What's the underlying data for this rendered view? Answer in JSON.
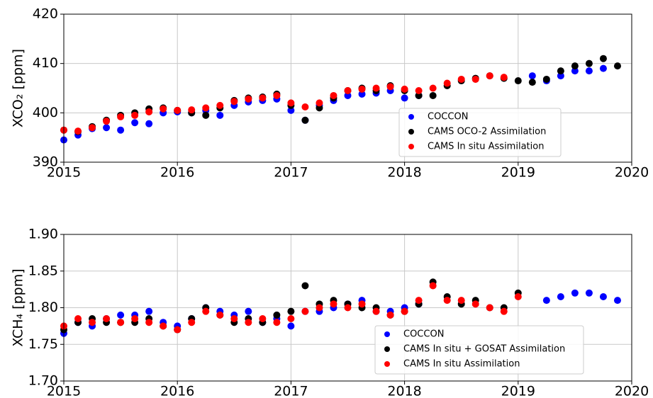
{
  "chart_data": [
    {
      "type": "scatter",
      "y_label": "XCO₂ [ppm]",
      "xlim": [
        2015,
        2020
      ],
      "xticks": [
        2015,
        2016,
        2017,
        2018,
        2019,
        2020
      ],
      "ylim": [
        390,
        420
      ],
      "yticks": [
        390,
        400,
        410,
        420
      ],
      "grid": true,
      "legend": "lower right",
      "x": [
        2015.0,
        2015.125,
        2015.25,
        2015.375,
        2015.5,
        2015.625,
        2015.75,
        2015.875,
        2016.0,
        2016.125,
        2016.25,
        2016.375,
        2016.5,
        2016.625,
        2016.75,
        2016.875,
        2017.0,
        2017.125,
        2017.25,
        2017.375,
        2017.5,
        2017.625,
        2017.75,
        2017.875,
        2018.0,
        2018.125,
        2018.25,
        2018.375,
        2018.5,
        2018.625,
        2018.75,
        2018.875,
        2019.0,
        2019.125,
        2019.25,
        2019.375,
        2019.5,
        2019.625,
        2019.75,
        2019.875
      ],
      "series": [
        {
          "name": "COCCON",
          "color": "#0000ff",
          "values": [
            394.5,
            395.5,
            396.8,
            397,
            396.5,
            398,
            397.8,
            400,
            400.2,
            400,
            400.5,
            399.5,
            401.5,
            402.2,
            402.5,
            402.8,
            400.5,
            398.5,
            401.5,
            402.5,
            403.5,
            403.8,
            404,
            404.5,
            403,
            403.5,
            null,
            null,
            null,
            null,
            null,
            null,
            null,
            407.5,
            406.5,
            407.5,
            408.5,
            408.5,
            409,
            null
          ]
        },
        {
          "name": "CAMS OCO-2 Assimilation",
          "color": "#000000",
          "values": [
            396.5,
            396.2,
            397.2,
            398.5,
            399.5,
            400,
            400.8,
            401,
            400.5,
            400,
            399.5,
            401,
            402.5,
            403,
            403.2,
            403.8,
            401.5,
            398.5,
            401,
            403,
            404.5,
            405,
            404.5,
            405.5,
            404.5,
            403.5,
            403.5,
            405.5,
            406.5,
            407,
            407.5,
            407,
            406.5,
            406.2,
            406.8,
            408.5,
            409.5,
            410,
            411,
            409.5
          ]
        },
        {
          "name": "CAMS In situ Assimilation",
          "color": "#ff0000",
          "values": [
            396.5,
            396.3,
            397,
            398.3,
            399.2,
            399.5,
            400.2,
            400.8,
            400.5,
            400.6,
            401,
            401.5,
            402.3,
            402.8,
            403,
            403.5,
            402,
            401.2,
            402,
            403.5,
            404.5,
            404.8,
            405,
            405.3,
            404.8,
            404.5,
            405,
            406,
            406.8,
            406.8,
            407.5,
            407.2,
            null,
            null,
            null,
            null,
            null,
            null,
            null,
            null
          ]
        }
      ]
    },
    {
      "type": "scatter",
      "y_label": "XCH₄ [ppm]",
      "xlim": [
        2015,
        2020
      ],
      "xticks": [
        2015,
        2016,
        2017,
        2018,
        2019,
        2020
      ],
      "ylim": [
        1.7,
        1.9
      ],
      "yticks": [
        {
          "value": 1.7,
          "label": "1.70"
        },
        1.75,
        {
          "value": 1.8,
          "label": "1.80"
        },
        1.85,
        {
          "value": 1.9,
          "label": "1.90"
        }
      ],
      "grid": true,
      "legend": "lower right",
      "x": [
        2015.0,
        2015.125,
        2015.25,
        2015.375,
        2015.5,
        2015.625,
        2015.75,
        2015.875,
        2016.0,
        2016.125,
        2016.25,
        2016.375,
        2016.5,
        2016.625,
        2016.75,
        2016.875,
        2017.0,
        2017.125,
        2017.25,
        2017.375,
        2017.5,
        2017.625,
        2017.75,
        2017.875,
        2018.0,
        2018.125,
        2018.25,
        2018.375,
        2018.5,
        2018.625,
        2018.75,
        2018.875,
        2019.0,
        2019.125,
        2019.25,
        2019.375,
        2019.5,
        2019.625,
        2019.75,
        2019.875
      ],
      "series": [
        {
          "name": "COCCON",
          "color": "#0000ff",
          "values": [
            1.765,
            1.78,
            1.775,
            1.785,
            1.79,
            1.79,
            1.795,
            1.78,
            1.775,
            1.785,
            1.8,
            1.795,
            1.79,
            1.795,
            1.78,
            1.785,
            1.775,
            1.795,
            1.795,
            1.8,
            1.805,
            1.81,
            1.795,
            1.795,
            1.8,
            1.805,
            null,
            null,
            null,
            null,
            null,
            null,
            null,
            null,
            1.81,
            1.815,
            1.82,
            1.82,
            1.815,
            1.81
          ]
        },
        {
          "name": "CAMS In situ + GOSAT Assimilation",
          "color": "#000000",
          "values": [
            1.77,
            1.78,
            1.785,
            1.78,
            1.78,
            1.78,
            1.785,
            1.775,
            1.77,
            1.785,
            1.8,
            1.79,
            1.78,
            1.785,
            1.78,
            1.79,
            1.795,
            1.83,
            1.805,
            1.81,
            1.805,
            1.8,
            1.8,
            1.79,
            1.795,
            1.805,
            1.835,
            1.815,
            1.805,
            1.81,
            1.8,
            1.8,
            1.82,
            null,
            null,
            null,
            null,
            null,
            null,
            null
          ]
        },
        {
          "name": "CAMS In situ Assimilation",
          "color": "#ff0000",
          "values": [
            1.775,
            1.785,
            1.78,
            1.785,
            1.78,
            1.785,
            1.78,
            1.775,
            1.77,
            1.78,
            1.795,
            1.79,
            1.785,
            1.78,
            1.785,
            1.78,
            1.785,
            1.795,
            1.8,
            1.805,
            1.8,
            1.805,
            1.795,
            1.79,
            1.795,
            1.81,
            1.83,
            1.81,
            1.81,
            1.805,
            1.8,
            1.795,
            1.815,
            null,
            null,
            null,
            null,
            null,
            null,
            null
          ]
        }
      ]
    }
  ]
}
